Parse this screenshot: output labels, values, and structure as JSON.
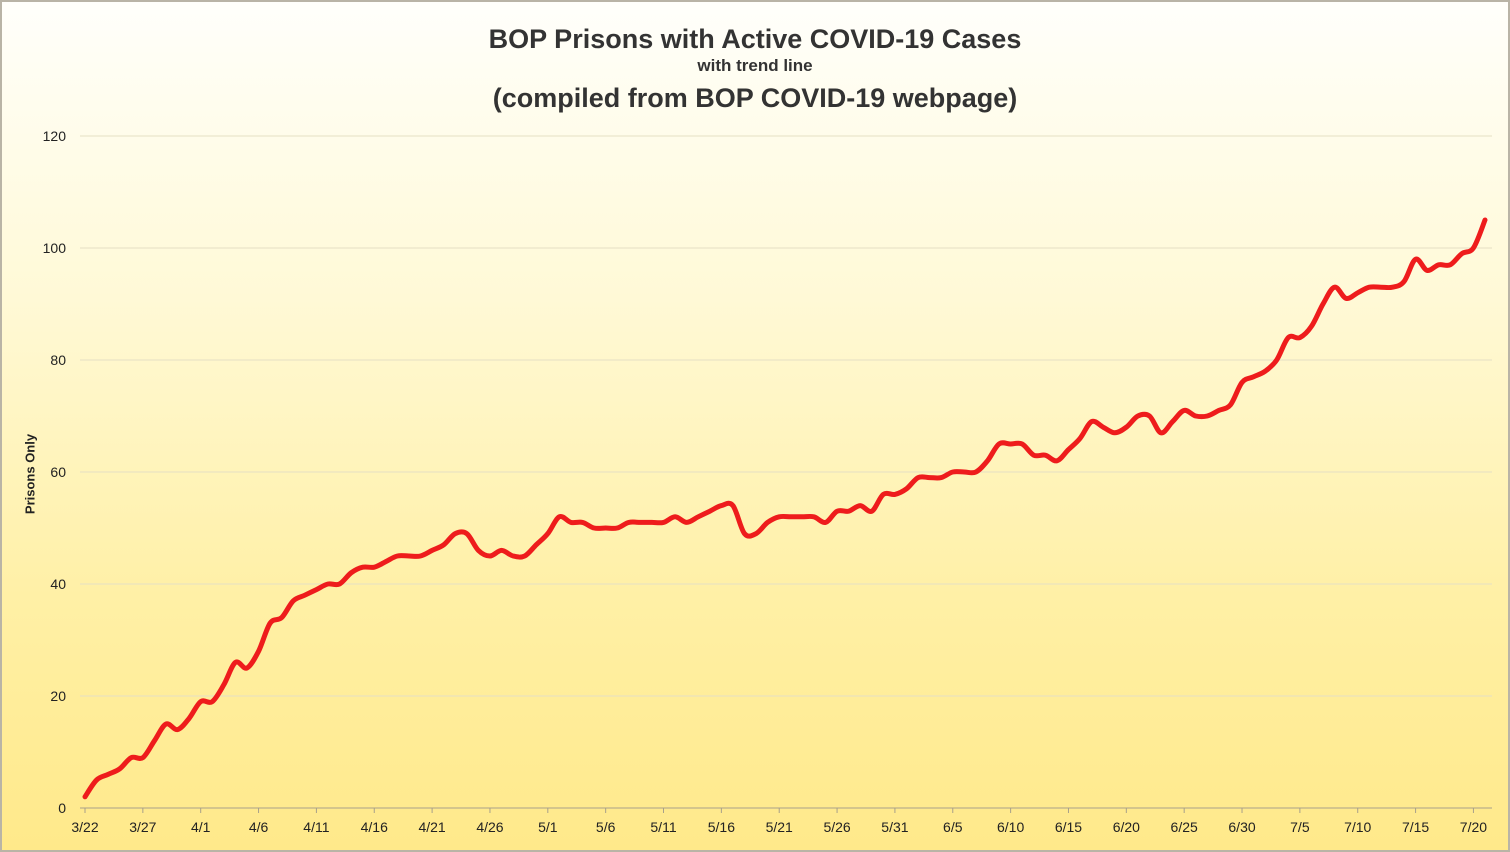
{
  "chart_data": {
    "type": "line",
    "title": "BOP Prisons with Active COVID-19 Cases",
    "subtitle": "with trend line",
    "title2": "(compiled from BOP COVID-19 webpage)",
    "xlabel": "",
    "ylabel": "Prisons Only",
    "ylim": [
      0,
      120
    ],
    "yticks": [
      0,
      20,
      40,
      60,
      80,
      100,
      120
    ],
    "xticks": [
      "3/22",
      "3/27",
      "4/1",
      "4/6",
      "4/11",
      "4/16",
      "4/21",
      "4/26",
      "5/1",
      "5/6",
      "5/11",
      "5/16",
      "5/21",
      "5/26",
      "5/31",
      "6/5",
      "6/10",
      "6/15",
      "6/20",
      "6/25",
      "6/30",
      "7/5",
      "7/10",
      "7/15",
      "7/20"
    ],
    "grid": true,
    "series": [
      {
        "color": "#ee1c1c",
        "start_date": "3/22",
        "values": [
          2,
          5,
          6,
          7,
          9,
          9,
          12,
          15,
          14,
          16,
          19,
          19,
          22,
          26,
          25,
          28,
          33,
          34,
          37,
          38,
          39,
          40,
          40,
          42,
          43,
          43,
          44,
          45,
          45,
          45,
          46,
          47,
          49,
          49,
          46,
          45,
          46,
          45,
          45,
          47,
          49,
          52,
          51,
          51,
          50,
          50,
          50,
          51,
          51,
          51,
          51,
          52,
          51,
          52,
          53,
          54,
          54,
          49,
          49,
          51,
          52,
          52,
          52,
          52,
          51,
          53,
          53,
          54,
          53,
          56,
          56,
          57,
          59,
          59,
          59,
          60,
          60,
          60,
          62,
          65,
          65,
          65,
          63,
          63,
          62,
          64,
          66,
          69,
          68,
          67,
          68,
          70,
          70,
          67,
          69,
          71,
          70,
          70,
          71,
          72,
          76,
          77,
          78,
          80,
          84,
          84,
          86,
          90,
          93,
          91,
          92,
          93,
          93,
          93,
          94,
          98,
          96,
          97,
          97,
          99,
          100,
          105
        ]
      }
    ]
  }
}
